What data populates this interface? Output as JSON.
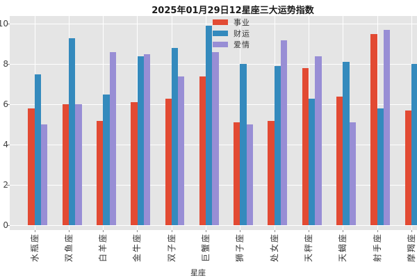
{
  "title": "2025年01月29日12星座三大运势指数",
  "chart_data": {
    "type": "bar",
    "title": "2025年01月29日12星座三大运势指数",
    "xlabel": "星座",
    "ylabel": "",
    "ylim": [
      0,
      10
    ],
    "yticks": [
      0,
      2,
      4,
      6,
      8,
      10
    ],
    "ytick_labels": [
      "0",
      "2",
      "4",
      "6",
      "8",
      "10"
    ],
    "grid": true,
    "legend_position": "upper center",
    "plot_bg_color": "#E5E5E5",
    "grid_color": "#FFFFFF",
    "categories": [
      "水瓶座",
      "双鱼座",
      "白羊座",
      "金牛座",
      "双子座",
      "巨蟹座",
      "狮子座",
      "处女座",
      "天秤座",
      "天蝎座",
      "射手座",
      "摩羯座"
    ],
    "last_category_clipped": true,
    "series": [
      {
        "name": "事业",
        "color": "#E24A33",
        "values": [
          5.8,
          6.0,
          5.2,
          6.1,
          6.3,
          7.4,
          5.1,
          5.2,
          7.8,
          6.4,
          9.5,
          5.7
        ]
      },
      {
        "name": "财运",
        "color": "#348ABD",
        "values": [
          7.5,
          9.3,
          6.5,
          8.4,
          8.8,
          9.9,
          8.0,
          7.9,
          6.3,
          8.1,
          5.8,
          8.0
        ]
      },
      {
        "name": "爱情",
        "color": "#988ED5",
        "values": [
          5.0,
          6.0,
          8.6,
          8.5,
          7.4,
          8.6,
          5.0,
          9.2,
          8.4,
          5.1,
          9.7,
          null
        ]
      }
    ]
  }
}
